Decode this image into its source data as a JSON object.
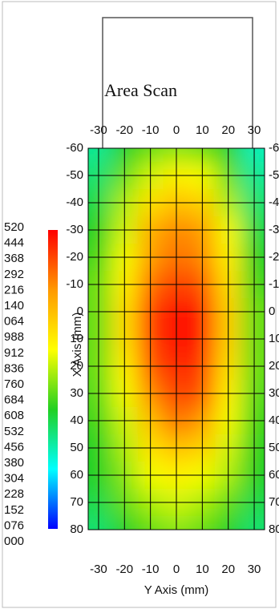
{
  "chart_data": {
    "type": "heatmap",
    "panel_title": "Area Scan",
    "xlabel": "Y Axis (mm)",
    "ylabel": "X Axis (mm)",
    "x": [
      -30,
      -20,
      -10,
      0,
      10,
      20,
      30
    ],
    "y": [
      -60,
      -50,
      -40,
      -30,
      -20,
      -10,
      0,
      10,
      20,
      30,
      40,
      50,
      60,
      70,
      80
    ],
    "values": [
      [
        0.45,
        0.6,
        0.7,
        0.75,
        0.7,
        0.6,
        0.4
      ],
      [
        0.5,
        0.7,
        0.85,
        0.95,
        0.9,
        0.7,
        0.45
      ],
      [
        0.55,
        0.8,
        1.0,
        1.1,
        1.05,
        0.8,
        0.5
      ],
      [
        0.6,
        0.85,
        1.15,
        1.25,
        1.2,
        0.9,
        0.55
      ],
      [
        0.65,
        0.9,
        1.2,
        1.3,
        1.25,
        0.95,
        0.6
      ],
      [
        0.7,
        0.95,
        1.3,
        1.4,
        1.35,
        1.0,
        0.65
      ],
      [
        0.7,
        1.0,
        1.4,
        1.5,
        1.45,
        1.05,
        0.7
      ],
      [
        0.7,
        1.0,
        1.4,
        1.5,
        1.45,
        1.05,
        0.7
      ],
      [
        0.7,
        0.95,
        1.35,
        1.45,
        1.4,
        1.0,
        0.7
      ],
      [
        0.68,
        0.9,
        1.25,
        1.4,
        1.35,
        0.95,
        0.68
      ],
      [
        0.65,
        0.85,
        1.1,
        1.3,
        1.2,
        0.9,
        0.65
      ],
      [
        0.6,
        0.8,
        1.0,
        1.1,
        1.05,
        0.85,
        0.62
      ],
      [
        0.6,
        0.75,
        0.9,
        0.95,
        0.9,
        0.8,
        0.6
      ],
      [
        0.55,
        0.7,
        0.8,
        0.85,
        0.8,
        0.7,
        0.55
      ],
      [
        0.5,
        0.6,
        0.7,
        0.75,
        0.7,
        0.6,
        0.5
      ]
    ],
    "zlim": [
      0,
      1.52
    ],
    "colormap": [
      "#0000ff",
      "#00ffff",
      "#22d022",
      "#ffff00",
      "#ff9900",
      "#ff0000"
    ],
    "colorbar_labels": [
      "520",
      "444",
      "368",
      "292",
      "216",
      "140",
      "064",
      "988",
      "912",
      "836",
      "760",
      "684",
      "608",
      "532",
      "456",
      "380",
      "304",
      "228",
      "152",
      "076",
      "000"
    ],
    "xlim": [
      -34,
      34
    ],
    "ylim": [
      -60,
      80
    ],
    "xticks": [
      -30,
      -20,
      -10,
      0,
      10,
      20,
      30
    ],
    "yticks": [
      -60,
      -50,
      -40,
      -30,
      -20,
      -10,
      0,
      10,
      20,
      30,
      40,
      50,
      60,
      70,
      80
    ],
    "grid": true
  }
}
